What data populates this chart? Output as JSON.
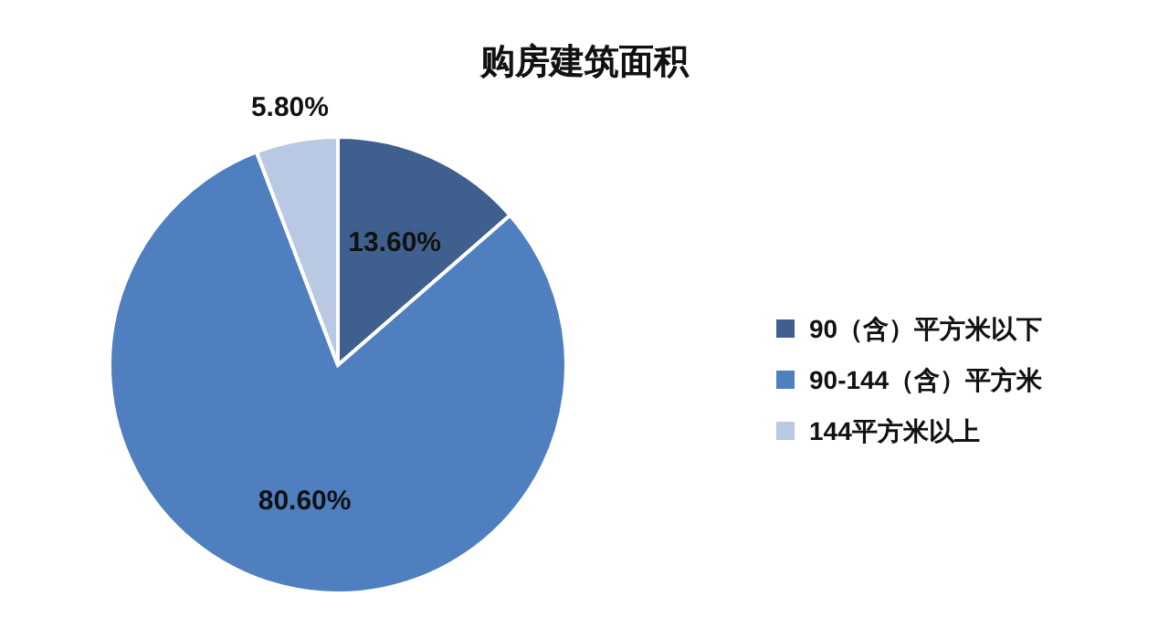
{
  "chart_data": {
    "type": "pie",
    "title": "购房建筑面积",
    "categories": [
      "90（含）平方米以下",
      "90-144（含）平方米",
      "144平方米以上"
    ],
    "values": [
      13.6,
      80.6,
      5.8
    ],
    "value_labels": [
      "13.60%",
      "80.60%",
      "5.80%"
    ],
    "colors": [
      "#3f5f8f",
      "#4f7fbf",
      "#b9c9e4"
    ],
    "legend": "right"
  }
}
